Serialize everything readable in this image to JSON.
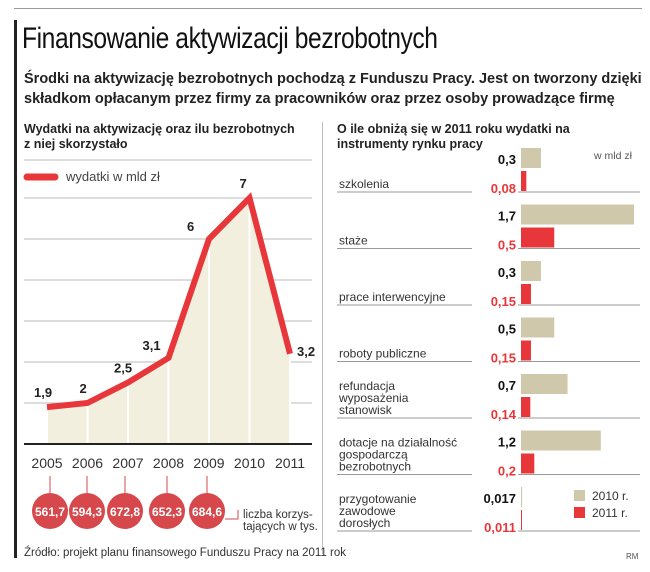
{
  "header": {
    "title": "Finansowanie aktywizacji bezrobotnych",
    "subtitle": "Środki na aktywizację bezrobotnych pochodzą z Funduszu Pracy. Jest on tworzony dzięki składkom opłacanym przez firmy za pracowników oraz przez osoby prowadzące firmę"
  },
  "footer": {
    "source": "Źródło: projekt planu finansowego Funduszu Pracy na 2011 rok",
    "author": "RM"
  },
  "colors": {
    "red": "#e8373a",
    "beige": "#cfc8ab",
    "fill": "#f3efdf",
    "bubble": "#d6484b"
  },
  "chart_data": [
    {
      "type": "area",
      "title": "Wydatki na aktywizację oraz ilu bezrobotnych z niej skorzystało",
      "legend": "wydatki w mld zł",
      "x": [
        "2005",
        "2006",
        "2007",
        "2008",
        "2009",
        "2010",
        "2011"
      ],
      "values": [
        1.9,
        2,
        2.5,
        3.1,
        6,
        7,
        3.2
      ],
      "value_labels": [
        "1,9",
        "2",
        "2,5",
        "3,1",
        "6",
        "7",
        "3,2"
      ],
      "ylim": [
        1,
        8
      ],
      "grid": true,
      "bubbles": {
        "label": "liczba korzys-tających w tys.",
        "label_lines": [
          "liczba korzys-",
          "tających w tys."
        ],
        "x": [
          "2005",
          "2006",
          "2007",
          "2008",
          "2009"
        ],
        "values": [
          "561,7",
          "594,3",
          "672,8",
          "652,3",
          "684,6"
        ]
      }
    },
    {
      "type": "bar",
      "orientation": "horizontal",
      "title": "O ile obniżą się w 2011 roku wydatki na instrumenty rynku pracy",
      "unit": "w mld zł",
      "categories": [
        [
          "szkolenia"
        ],
        [
          "staże"
        ],
        [
          "prace interwencyjne"
        ],
        [
          "roboty publiczne"
        ],
        [
          "refundacja",
          "wyposażenia",
          "stanowisk"
        ],
        [
          "dotacje na działalność",
          "gospodarczą",
          "bezrobotnych"
        ],
        [
          "przygotowanie",
          "zawodowe",
          "dorosłych"
        ]
      ],
      "series": [
        {
          "name": "2010 r.",
          "values": [
            0.3,
            1.7,
            0.3,
            0.5,
            0.7,
            1.2,
            0.017
          ],
          "labels": [
            "0,3",
            "1,7",
            "0,3",
            "0,5",
            "0,7",
            "1,2",
            "0,017"
          ]
        },
        {
          "name": "2011 r.",
          "values": [
            0.08,
            0.5,
            0.15,
            0.15,
            0.14,
            0.2,
            0.011
          ],
          "labels": [
            "0,08",
            "0,5",
            "0,15",
            "0,15",
            "0,14",
            "0,2",
            "0,011"
          ]
        }
      ],
      "legend": "bottom-right"
    }
  ]
}
